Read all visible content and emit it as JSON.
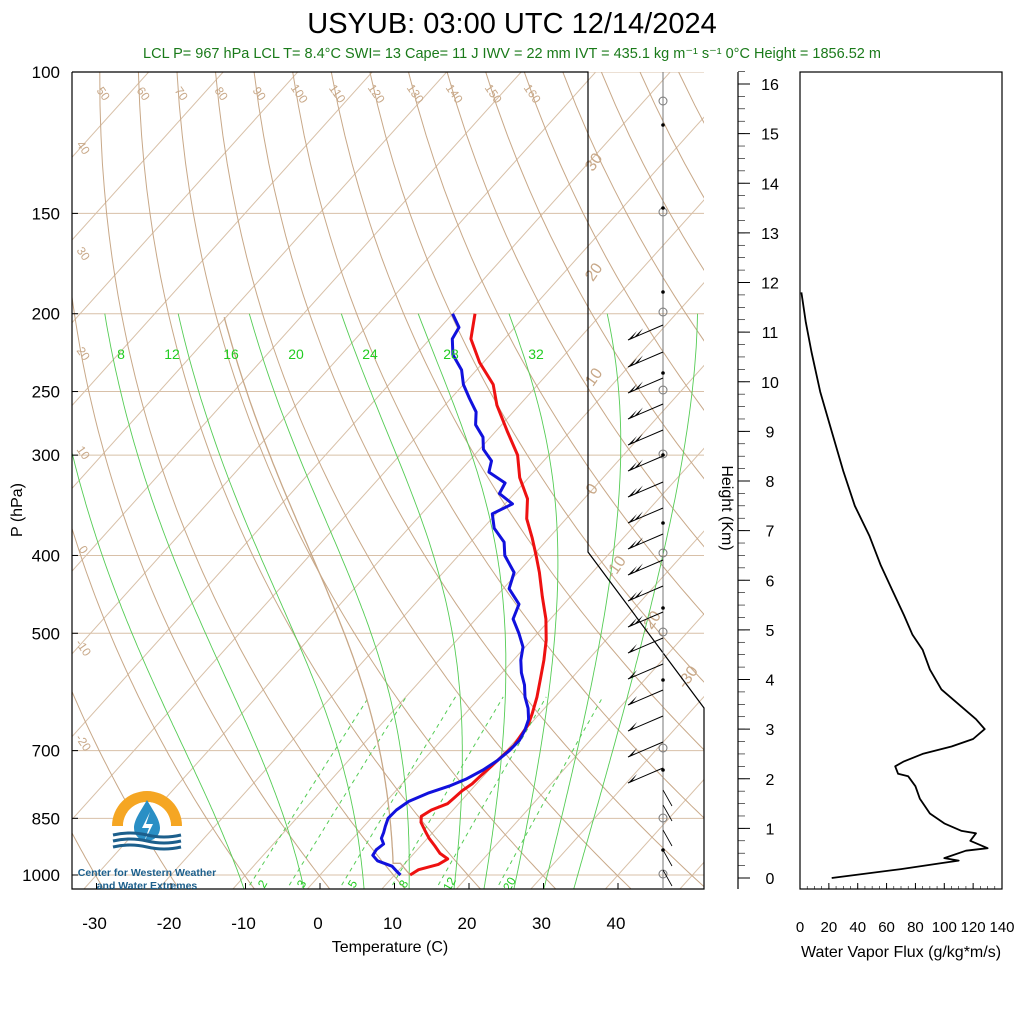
{
  "title": "USYUB: 03:00 UTC 12/14/2024",
  "subtitle": "LCL P= 967 hPa  LCL T= 8.4°C  SWI= 13  Cape= 11 J  IWV = 22 mm  IVT = 435.1 kg m⁻¹ s⁻¹  0°C Height = 1856.52 m",
  "logo": {
    "line1": "Center for Western Weather",
    "line2": "and Water Extremes"
  },
  "colors": {
    "temperature": "#ee1111",
    "dewpoint": "#1111dd",
    "dry_adiabat": "#c8a888",
    "moist_adiabat": "#55cc55",
    "mixing_ratio": "#55cc55",
    "isobar": "#d8c0a8",
    "isotherm": "#d8c0a8",
    "parcel": "#c8a888"
  },
  "chart_data": [
    {
      "type": "line",
      "name": "skew-t",
      "xlabel": "Temperature (C)",
      "ylabel": "P (hPa)",
      "xlim": [
        -35,
        50
      ],
      "ylim": [
        1000,
        100
      ],
      "y_scale": "log",
      "x_ticks": [
        -30,
        -20,
        -10,
        0,
        10,
        20,
        30,
        40
      ],
      "y_ticks": [
        100,
        150,
        200,
        250,
        300,
        400,
        500,
        700,
        850,
        1000
      ],
      "isotherm_labels": [
        -30,
        -20,
        -10,
        0,
        10,
        20,
        30
      ],
      "dry_adiabat_labels": [
        50,
        60,
        70,
        80,
        90,
        100,
        110,
        120,
        130,
        140,
        150,
        160
      ],
      "dry_adiabat_left_labels": [
        40,
        30,
        20,
        10,
        0,
        -10,
        -20
      ],
      "mixing_ratio_top_labels": [
        8,
        12,
        16,
        20,
        24,
        28,
        32
      ],
      "mixing_ratio_bottom_labels": [
        2,
        3,
        5,
        8,
        12,
        20
      ],
      "series": [
        {
          "key": "temperature",
          "points": [
            [
              1000,
              12.1
            ],
            [
              985,
              12.6
            ],
            [
              970,
              14.6
            ],
            [
              955,
              15.2
            ],
            [
              940,
              13.5
            ],
            [
              920,
              11.9
            ],
            [
              900,
              10.2
            ],
            [
              880,
              8.7
            ],
            [
              860,
              7.2
            ],
            [
              845,
              6.5
            ],
            [
              830,
              7.1
            ],
            [
              815,
              8.5
            ],
            [
              800,
              8.7
            ],
            [
              785,
              8.9
            ],
            [
              770,
              9.4
            ],
            [
              750,
              9.6
            ],
            [
              730,
              9.9
            ],
            [
              710,
              10.1
            ],
            [
              690,
              10.4
            ],
            [
              670,
              10.1
            ],
            [
              650,
              9.8
            ],
            [
              630,
              9.0
            ],
            [
              600,
              7.6
            ],
            [
              570,
              5.9
            ],
            [
              540,
              4.1
            ],
            [
              510,
              2.0
            ],
            [
              480,
              -0.6
            ],
            [
              450,
              -3.8
            ],
            [
              420,
              -7.1
            ],
            [
              400,
              -9.6
            ],
            [
              380,
              -12.3
            ],
            [
              360,
              -15.3
            ],
            [
              340,
              -17.6
            ],
            [
              320,
              -21.2
            ],
            [
              300,
              -24.2
            ],
            [
              280,
              -28.5
            ],
            [
              260,
              -33.0
            ],
            [
              245,
              -36.0
            ],
            [
              230,
              -40.5
            ],
            [
              215,
              -44.5
            ],
            [
              200,
              -47.0
            ]
          ]
        },
        {
          "key": "dewpoint",
          "points": [
            [
              1000,
              10.8
            ],
            [
              990,
              9.9
            ],
            [
              975,
              8.6
            ],
            [
              960,
              6.0
            ],
            [
              945,
              4.7
            ],
            [
              930,
              4.5
            ],
            [
              915,
              4.8
            ],
            [
              900,
              3.8
            ],
            [
              885,
              3.4
            ],
            [
              870,
              2.9
            ],
            [
              850,
              2.3
            ],
            [
              830,
              2.4
            ],
            [
              810,
              3.0
            ],
            [
              790,
              4.7
            ],
            [
              775,
              6.6
            ],
            [
              760,
              8.0
            ],
            [
              740,
              9.2
            ],
            [
              720,
              10.0
            ],
            [
              700,
              10.4
            ],
            [
              680,
              10.5
            ],
            [
              660,
              10.0
            ],
            [
              640,
              9.2
            ],
            [
              620,
              7.8
            ],
            [
              600,
              6.0
            ],
            [
              580,
              4.5
            ],
            [
              560,
              2.6
            ],
            [
              540,
              1.0
            ],
            [
              520,
              -0.3
            ],
            [
              500,
              -2.5
            ],
            [
              480,
              -5.0
            ],
            [
              460,
              -6.0
            ],
            [
              440,
              -9.2
            ],
            [
              420,
              -10.5
            ],
            [
              400,
              -13.8
            ],
            [
              385,
              -15.5
            ],
            [
              370,
              -18.5
            ],
            [
              355,
              -20.5
            ],
            [
              345,
              -19.0
            ],
            [
              335,
              -22.0
            ],
            [
              325,
              -22.5
            ],
            [
              315,
              -26.0
            ],
            [
              305,
              -27.0
            ],
            [
              295,
              -29.5
            ],
            [
              285,
              -31.0
            ],
            [
              275,
              -33.5
            ],
            [
              265,
              -35.0
            ],
            [
              255,
              -37.5
            ],
            [
              245,
              -40.0
            ],
            [
              235,
              -42.0
            ],
            [
              225,
              -45.0
            ],
            [
              215,
              -47.0
            ],
            [
              208,
              -47.5
            ],
            [
              200,
              -50.0
            ]
          ]
        }
      ],
      "wind_barbs_note": "wind barbs plotted at right margin of skew-t"
    },
    {
      "type": "line",
      "name": "water-vapor-flux",
      "xlabel": "Water Vapor Flux (g/kg*m/s)",
      "ylabel": "Height (Km)",
      "xlim": [
        0,
        140
      ],
      "ylim": [
        0,
        16.5
      ],
      "x_ticks": [
        0,
        20,
        40,
        60,
        80,
        100,
        120,
        140
      ],
      "y_ticks": [
        0,
        1,
        2,
        3,
        4,
        5,
        6,
        7,
        8,
        9,
        10,
        11,
        12,
        13,
        14,
        15,
        16
      ],
      "series": [
        {
          "key": "flux",
          "points": [
            [
              22,
              0.0
            ],
            [
              70,
              0.18
            ],
            [
              98,
              0.3
            ],
            [
              110,
              0.35
            ],
            [
              100,
              0.4
            ],
            [
              115,
              0.55
            ],
            [
              130,
              0.6
            ],
            [
              118,
              0.75
            ],
            [
              122,
              0.9
            ],
            [
              112,
              0.95
            ],
            [
              100,
              1.1
            ],
            [
              90,
              1.3
            ],
            [
              83,
              1.6
            ],
            [
              80,
              1.85
            ],
            [
              75,
              2.05
            ],
            [
              68,
              2.1
            ],
            [
              66,
              2.25
            ],
            [
              72,
              2.35
            ],
            [
              85,
              2.5
            ],
            [
              105,
              2.65
            ],
            [
              120,
              2.8
            ],
            [
              128,
              3.0
            ],
            [
              122,
              3.2
            ],
            [
              110,
              3.5
            ],
            [
              98,
              3.8
            ],
            [
              90,
              4.2
            ],
            [
              85,
              4.6
            ],
            [
              78,
              4.9
            ],
            [
              72,
              5.3
            ],
            [
              64,
              5.8
            ],
            [
              56,
              6.3
            ],
            [
              48,
              6.9
            ],
            [
              38,
              7.5
            ],
            [
              30,
              8.2
            ],
            [
              22,
              9.0
            ],
            [
              14,
              9.8
            ],
            [
              8,
              10.6
            ],
            [
              4,
              11.2
            ],
            [
              1,
              11.8
            ]
          ]
        }
      ]
    }
  ]
}
